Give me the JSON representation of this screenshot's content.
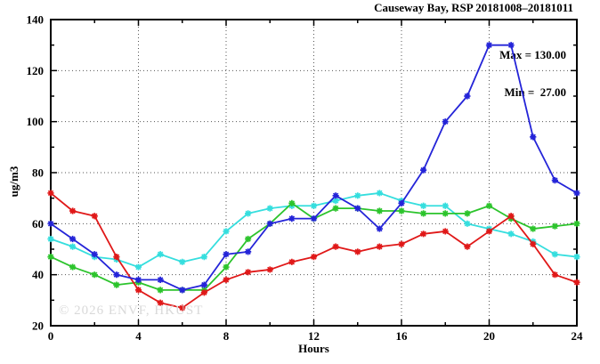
{
  "title": "Causeway Bay, RSP 20181008–20181011",
  "legend": {
    "max_label": "Max = 130.00",
    "min_label": "Min =  27.00"
  },
  "watermark": "© 2026 ENVF, HKUST",
  "chart_data": {
    "type": "line",
    "title": "Causeway Bay, RSP 20181008–20181011",
    "xlabel": "Hours",
    "ylabel": "ug/m3",
    "xlim": [
      0,
      24
    ],
    "ylim": [
      20,
      140
    ],
    "xticks_major": [
      0,
      4,
      8,
      12,
      16,
      20,
      24
    ],
    "xticks_minor": [
      2,
      6,
      10,
      14,
      18,
      22
    ],
    "yticks_major": [
      20,
      40,
      60,
      80,
      100,
      120,
      140
    ],
    "yticks_minor": [
      30,
      50,
      70,
      90,
      110,
      130
    ],
    "grid": "dotted lines at major ticks, frame on all four sides",
    "legend_position": "top-right inside plot",
    "marker": "asterisk",
    "x": [
      0,
      1,
      2,
      3,
      4,
      5,
      6,
      7,
      8,
      9,
      10,
      11,
      12,
      13,
      14,
      15,
      16,
      17,
      18,
      19,
      20,
      21,
      22,
      23,
      24
    ],
    "series": [
      {
        "name": "cyan",
        "color": "#35dede",
        "values": [
          54,
          51,
          47,
          46,
          43,
          48,
          45,
          47,
          57,
          64,
          66,
          67,
          67,
          69,
          71,
          72,
          69,
          67,
          67,
          60,
          58,
          56,
          53,
          48,
          47
        ]
      },
      {
        "name": "green",
        "color": "#2cc42c",
        "values": [
          47,
          43,
          40,
          36,
          37,
          34,
          34,
          34,
          43,
          54,
          60,
          68,
          62,
          66,
          66,
          65,
          65,
          64,
          64,
          64,
          67,
          62,
          58,
          59,
          60
        ]
      },
      {
        "name": "red",
        "color": "#e01818",
        "values": [
          72,
          65,
          63,
          47,
          34,
          29,
          27,
          33,
          38,
          41,
          42,
          45,
          47,
          51,
          49,
          51,
          52,
          56,
          57,
          51,
          57,
          63,
          52,
          40,
          37
        ]
      },
      {
        "name": "blue",
        "color": "#2424d8",
        "values": [
          60,
          54,
          48,
          40,
          38,
          38,
          34,
          36,
          48,
          49,
          60,
          62,
          62,
          71,
          66,
          58,
          68,
          81,
          100,
          110,
          130,
          130,
          94,
          77,
          72
        ]
      }
    ],
    "stats": {
      "max": 130.0,
      "min": 27.0
    }
  }
}
